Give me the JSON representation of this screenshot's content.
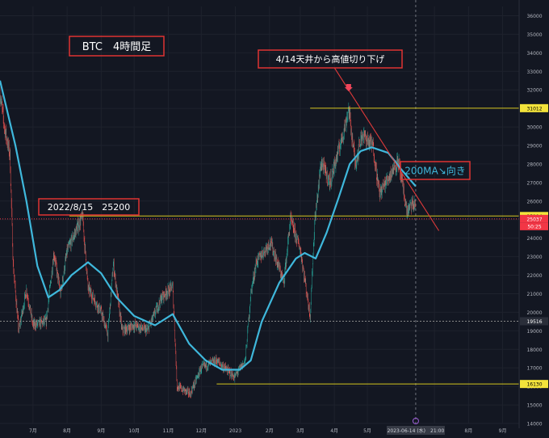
{
  "chart_data": {
    "type": "candlestick",
    "title": "BTC　4時間足",
    "y_ticks": [
      14000,
      15000,
      16000,
      17000,
      18000,
      19000,
      20000,
      21000,
      22000,
      23000,
      24000,
      25000,
      26000,
      27000,
      28000,
      29000,
      30000,
      31000,
      32000,
      33000,
      34000,
      35000,
      36000
    ],
    "ylim": [
      14000,
      36500
    ],
    "x_ticks": [
      {
        "label": "7月",
        "date": "2022-07-01"
      },
      {
        "label": "8月",
        "date": "2022-08-01"
      },
      {
        "label": "9月",
        "date": "2022-09-01"
      },
      {
        "label": "10月",
        "date": "2022-10-01"
      },
      {
        "label": "11月",
        "date": "2022-11-01"
      },
      {
        "label": "12月",
        "date": "2022-12-01"
      },
      {
        "label": "2023",
        "date": "2023-01-01"
      },
      {
        "label": "2月",
        "date": "2023-02-01"
      },
      {
        "label": "3月",
        "date": "2023-03-01"
      },
      {
        "label": "4月",
        "date": "2023-04-01"
      },
      {
        "label": "5月",
        "date": "2023-05-01"
      },
      {
        "label": "7月",
        "date": "2023-07-01"
      },
      {
        "label": "8月",
        "date": "2023-08-01"
      },
      {
        "label": "9月",
        "date": "2023-09-01"
      }
    ],
    "cursor_date_label": "2023-06-14 (水)　21:00",
    "price_series": [
      {
        "date": "2022-06-01",
        "value": 31800
      },
      {
        "date": "2022-06-05",
        "value": 30000
      },
      {
        "date": "2022-06-10",
        "value": 28500
      },
      {
        "date": "2022-06-13",
        "value": 22500
      },
      {
        "date": "2022-06-18",
        "value": 19000
      },
      {
        "date": "2022-06-25",
        "value": 21200
      },
      {
        "date": "2022-07-01",
        "value": 19300
      },
      {
        "date": "2022-07-13",
        "value": 19500
      },
      {
        "date": "2022-07-20",
        "value": 23200
      },
      {
        "date": "2022-07-26",
        "value": 21000
      },
      {
        "date": "2022-08-01",
        "value": 23300
      },
      {
        "date": "2022-08-15",
        "value": 25200
      },
      {
        "date": "2022-08-20",
        "value": 21300
      },
      {
        "date": "2022-09-01",
        "value": 20000
      },
      {
        "date": "2022-09-07",
        "value": 18800
      },
      {
        "date": "2022-09-12",
        "value": 22600
      },
      {
        "date": "2022-09-20",
        "value": 19000
      },
      {
        "date": "2022-10-01",
        "value": 19300
      },
      {
        "date": "2022-10-13",
        "value": 19000
      },
      {
        "date": "2022-10-26",
        "value": 20800
      },
      {
        "date": "2022-11-05",
        "value": 21400
      },
      {
        "date": "2022-11-09",
        "value": 16000
      },
      {
        "date": "2022-11-21",
        "value": 15600
      },
      {
        "date": "2022-12-01",
        "value": 17000
      },
      {
        "date": "2022-12-15",
        "value": 17400
      },
      {
        "date": "2022-12-31",
        "value": 16500
      },
      {
        "date": "2023-01-10",
        "value": 17400
      },
      {
        "date": "2023-01-15",
        "value": 21000
      },
      {
        "date": "2023-01-20",
        "value": 22700
      },
      {
        "date": "2023-02-02",
        "value": 23800
      },
      {
        "date": "2023-02-14",
        "value": 21600
      },
      {
        "date": "2023-02-20",
        "value": 25000
      },
      {
        "date": "2023-03-01",
        "value": 23400
      },
      {
        "date": "2023-03-10",
        "value": 19800
      },
      {
        "date": "2023-03-14",
        "value": 24800
      },
      {
        "date": "2023-03-20",
        "value": 28100
      },
      {
        "date": "2023-03-28",
        "value": 27000
      },
      {
        "date": "2023-04-11",
        "value": 30100
      },
      {
        "date": "2023-04-14",
        "value": 31000
      },
      {
        "date": "2023-04-20",
        "value": 28000
      },
      {
        "date": "2023-04-26",
        "value": 29600
      },
      {
        "date": "2023-05-06",
        "value": 29000
      },
      {
        "date": "2023-05-12",
        "value": 26400
      },
      {
        "date": "2023-05-29",
        "value": 28200
      },
      {
        "date": "2023-06-06",
        "value": 25400
      },
      {
        "date": "2023-06-10",
        "value": 25800
      },
      {
        "date": "2023-06-14",
        "value": 25800
      }
    ],
    "ma200": {
      "label": "200MA↘向き",
      "points": [
        {
          "date": "2022-06-01",
          "value": 32500
        },
        {
          "date": "2022-06-15",
          "value": 29000
        },
        {
          "date": "2022-06-25",
          "value": 26000
        },
        {
          "date": "2022-07-05",
          "value": 22500
        },
        {
          "date": "2022-07-15",
          "value": 20800
        },
        {
          "date": "2022-07-25",
          "value": 21200
        },
        {
          "date": "2022-08-05",
          "value": 22000
        },
        {
          "date": "2022-08-20",
          "value": 22700
        },
        {
          "date": "2022-09-01",
          "value": 22100
        },
        {
          "date": "2022-09-15",
          "value": 20800
        },
        {
          "date": "2022-10-01",
          "value": 19800
        },
        {
          "date": "2022-10-20",
          "value": 19300
        },
        {
          "date": "2022-11-05",
          "value": 19900
        },
        {
          "date": "2022-11-20",
          "value": 18300
        },
        {
          "date": "2022-12-05",
          "value": 17400
        },
        {
          "date": "2022-12-20",
          "value": 16900
        },
        {
          "date": "2023-01-05",
          "value": 16900
        },
        {
          "date": "2023-01-15",
          "value": 17400
        },
        {
          "date": "2023-01-25",
          "value": 19500
        },
        {
          "date": "2023-02-10",
          "value": 21600
        },
        {
          "date": "2023-02-25",
          "value": 22900
        },
        {
          "date": "2023-03-05",
          "value": 23200
        },
        {
          "date": "2023-03-15",
          "value": 22900
        },
        {
          "date": "2023-03-25",
          "value": 24300
        },
        {
          "date": "2023-04-05",
          "value": 26200
        },
        {
          "date": "2023-04-15",
          "value": 28000
        },
        {
          "date": "2023-04-25",
          "value": 28700
        },
        {
          "date": "2023-05-05",
          "value": 28900
        },
        {
          "date": "2023-05-20",
          "value": 28600
        },
        {
          "date": "2023-06-01",
          "value": 27700
        },
        {
          "date": "2023-06-14",
          "value": 26800
        }
      ]
    },
    "horizontal_lines": [
      {
        "price": 31012,
        "label": "31012",
        "color": "#d4c51f"
      },
      {
        "price": 25194,
        "label": "25194",
        "color": "#d4c51f"
      },
      {
        "price": 25037,
        "label": "25037",
        "color": "#f23645"
      },
      {
        "price": 19516,
        "label": "19516",
        "color": "#888888"
      },
      {
        "price": 16130,
        "label": "16130",
        "color": "#d4c51f"
      }
    ],
    "current_price_countdown": "50:25",
    "trend_line": {
      "from": {
        "date": "2023-04-01",
        "value": 33200
      },
      "to": {
        "date": "2023-07-05",
        "value": 24400
      },
      "color": "#e03a3a"
    },
    "annotations": [
      {
        "text": "BTC　4時間足"
      },
      {
        "text": "4/14天井から高値切り下げ"
      },
      {
        "text": "2022/8/15　25200"
      },
      {
        "text": "200MA↘向き"
      }
    ],
    "colors": {
      "background": "#131722",
      "up": "#26a69a",
      "down": "#ef5350",
      "ma": "#3fb8dc",
      "level": "#d4c51f",
      "text_red": "#ff4a4a",
      "axis_text": "#b2b5be"
    }
  }
}
